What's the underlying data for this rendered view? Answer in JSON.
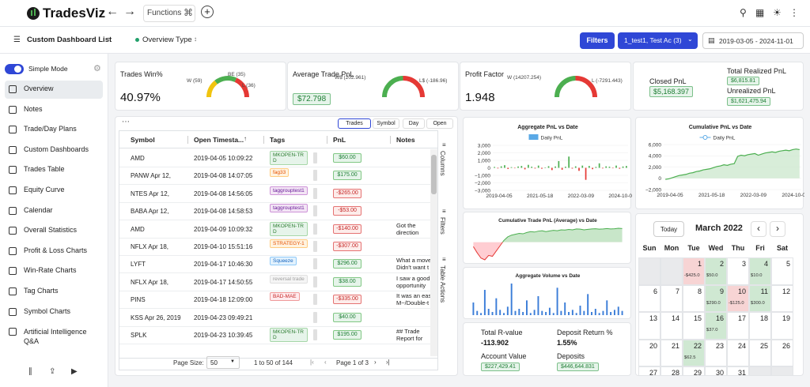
{
  "nav": {
    "brand": "TradesViz",
    "functions": "Functions"
  },
  "toolbar": {
    "dashboard_list": "Custom Dashboard List",
    "overview_type": "Overview Type",
    "filters": "Filters",
    "account": "1_test1, Test Ac (3)",
    "date_range": "2019-03-05 - 2024-11-01"
  },
  "sidebar": {
    "mode": "Simple Mode",
    "items": [
      "Overview",
      "Notes",
      "Trade/Day Plans",
      "Custom Dashboards",
      "Trades Table",
      "Equity Curve",
      "Calendar",
      "Overall Statistics",
      "Profit & Loss Charts",
      "Win-Rate Charts",
      "Tag Charts",
      "Symbol Charts",
      "Artificial Intelligence Q&A"
    ]
  },
  "stats": [
    {
      "title": "Trades Win%",
      "value": "40.97%",
      "gauge": [
        "W (59)",
        "BE (35)",
        "L (36)"
      ]
    },
    {
      "title": "Average Trade PnL",
      "value": "$72.798",
      "gauge": [
        "W$ (202.961)",
        "L$ (-186.96)"
      ]
    },
    {
      "title": "Profit Factor",
      "value": "1.948",
      "gauge": [
        "W (14207.254)",
        "L (-7291.443)"
      ]
    }
  ],
  "realized": {
    "closed_label": "Closed PnL",
    "closed_value": "$5,168.397",
    "total_label": "Total Realized PnL",
    "total_value": "$6,815.81",
    "unrealized_label": "Unrealized PnL",
    "unrealized_value": "$1,621,475.94"
  },
  "table": {
    "tabs": [
      "Trades",
      "Symbol",
      "Day",
      "Open"
    ],
    "columns": [
      "Symbol",
      "Open Timesta...",
      "Tags",
      "PnL",
      "Notes"
    ],
    "rows": [
      {
        "symbol": "AMD",
        "time": "2019-04-05 10:09:22",
        "tags": [
          {
            "text": "MKOPEN-TRD",
            "color": "green"
          }
        ],
        "pnl": "$60.00",
        "notes": null
      },
      {
        "symbol": "PANW Apr 12,",
        "time": "2019-04-08 14:07:05",
        "tags": [
          {
            "text": "fag33",
            "color": "orange"
          }
        ],
        "pnl": "$175.00",
        "notes": null
      },
      {
        "symbol": "NTES Apr 12,",
        "time": "2019-04-08 14:56:05",
        "tags": [
          {
            "text": "taggrouptest1",
            "color": "purple"
          }
        ],
        "pnl": "-$265.00",
        "notes": null
      },
      {
        "symbol": "BABA Apr 12,",
        "time": "2019-04-08 14:58:53",
        "tags": [
          {
            "text": "taggrouptest1",
            "color": "purple"
          }
        ],
        "pnl": "-$53.00",
        "notes": null
      },
      {
        "symbol": "AMD",
        "time": "2019-04-09 10:09:32",
        "tags": [
          {
            "text": "MKOPEN-TRD",
            "color": "green"
          }
        ],
        "pnl": "-$140.00",
        "notes": "Got the direction"
      },
      {
        "symbol": "NFLX Apr 18,",
        "time": "2019-04-10 15:51:16",
        "tags": [
          {
            "text": "STRATEGY-1",
            "color": "orange"
          }
        ],
        "pnl": "-$307.00",
        "notes": null
      },
      {
        "symbol": "LYFT",
        "time": "2019-04-17 10:46:30",
        "tags": [
          {
            "text": "Squeeze",
            "color": "blue"
          }
        ],
        "pnl": "$296.00",
        "notes": "What a move Didn't want t"
      },
      {
        "symbol": "NFLX Apr 18,",
        "time": "2019-04-17 14:50:55",
        "tags": [
          {
            "text": "reversal trade",
            "color": "grey"
          }
        ],
        "pnl": "$38.00",
        "notes": "I saw a good opportunity"
      },
      {
        "symbol": "PINS",
        "time": "2019-04-18 12:09:00",
        "tags": [
          {
            "text": "BAD-MAE",
            "color": "red"
          }
        ],
        "pnl": "-$335.00",
        "notes": "It was an eas M~/Double-t"
      },
      {
        "symbol": "KSS Apr 26, 2019",
        "time": "2019-04-23 09:49:21",
        "tags": [],
        "pnl": "$40.00",
        "notes": null
      },
      {
        "symbol": "SPLK",
        "time": "2019-04-23 10:39:45",
        "tags": [
          {
            "text": "MKOPEN-TRD",
            "color": "green"
          }
        ],
        "pnl": "$195.00",
        "notes": "## Trade Report for"
      }
    ],
    "side": [
      "Columns",
      "Filters",
      "Table Actions"
    ],
    "footer": {
      "page_size_label": "Page Size:",
      "page_size": "50",
      "range": "1 to 50 of 144",
      "page": "Page 1 of 3"
    }
  },
  "charts": {
    "aggregate_pnl": {
      "title": "Aggregate PnL vs Date",
      "legend": "Daily PnL",
      "color": "#4caf50",
      "neg_color": "#e53935",
      "ylim": [
        -3000,
        3000
      ],
      "yticks": [
        {
          "value": 3000,
          "label": "3,000"
        },
        {
          "value": 2000,
          "label": "2,000"
        },
        {
          "value": 1000,
          "label": "1,000"
        },
        0,
        {
          "value": -1000,
          "label": "−1,000"
        },
        {
          "value": -2000,
          "label": "−2,000"
        },
        {
          "value": -3000,
          "label": "−3,000"
        }
      ],
      "xticks": [
        "2019-04-05",
        "2021-05-18",
        "2022-03-09",
        "2024-10-01"
      ],
      "values": [
        120,
        -80,
        200,
        350,
        -150,
        90,
        -60,
        180,
        250,
        -200,
        400,
        150,
        -90,
        300,
        -120,
        60,
        220,
        -300,
        180,
        900,
        -250,
        150,
        1500,
        -100,
        200,
        -400,
        300,
        -1600,
        250,
        -180,
        120,
        600,
        -80,
        200,
        150,
        -60,
        300,
        -120,
        180,
        250
      ]
    },
    "cumulative_pnl": {
      "title": "Cumulative PnL vs Date",
      "legend": "Daily PnL",
      "color": "#4caf50",
      "ylim": [
        -2000,
        6000
      ],
      "yticks": [
        {
          "value": 6000,
          "label": "6,000"
        },
        {
          "value": 4000,
          "label": "4,000"
        },
        {
          "value": 2000,
          "label": "2,000"
        },
        0,
        {
          "value": -2000,
          "label": "−2,000"
        }
      ],
      "xticks": [
        "2019-04-05",
        "2021-05-18",
        "2022-03-09",
        "2024-10-01"
      ],
      "values": [
        -200,
        -100,
        100,
        300,
        500,
        600,
        700,
        900,
        1000,
        1200,
        1300,
        1500,
        1600,
        1700,
        1900,
        2100,
        2200,
        2400,
        2300,
        2500,
        2600,
        3900,
        4100,
        4000,
        4200,
        4300,
        4400,
        4100,
        4300,
        4500,
        4600,
        4700,
        4600,
        4800,
        4900,
        5000,
        4900,
        5100,
        5200,
        5100
      ]
    },
    "cumulative_avg": {
      "title": "Cumulative Trade PnL (Average) vs Date",
      "color": "#4caf50",
      "neg_color": "#e53935",
      "values": [
        -50,
        -120,
        -180,
        -200,
        -150,
        -160,
        -100,
        -40,
        20,
        60,
        80,
        90,
        100,
        95,
        110,
        120,
        115,
        125,
        130,
        120,
        128,
        135,
        130,
        140,
        138,
        145,
        140,
        150,
        148,
        140,
        146,
        150,
        152,
        148,
        150,
        155,
        150,
        152,
        158,
        155
      ]
    },
    "volume": {
      "title": "Aggregate Volume vs Date",
      "color": "#3b7dd8",
      "values": [
        60,
        20,
        10,
        120,
        30,
        15,
        80,
        25,
        10,
        40,
        150,
        20,
        30,
        15,
        70,
        10,
        25,
        90,
        20,
        15,
        35,
        10,
        130,
        20,
        60,
        15,
        25,
        10,
        45,
        20,
        100,
        15,
        30,
        10,
        20,
        70,
        15,
        25,
        40,
        20
      ]
    }
  },
  "summary": [
    {
      "label": "Total R-value",
      "value": "-113.902"
    },
    {
      "label": "Deposit Return %",
      "value": "1.55%"
    },
    {
      "label": "Account Value",
      "value": "$227,429.41"
    },
    {
      "label": "Deposits",
      "value": "$446,644.831"
    }
  ],
  "calendar": {
    "today": "Today",
    "month": "March 2022",
    "weekdays": [
      "Sun",
      "Mon",
      "Tue",
      "Wed",
      "Thu",
      "Fri",
      "Sat"
    ],
    "weeks": [
      [
        null,
        null,
        {
          "day": 1,
          "pnl": "-$425.0"
        },
        {
          "day": 2,
          "pnl": "$50.0"
        },
        {
          "day": 3,
          "pnl": null
        },
        {
          "day": 4,
          "pnl": "$10.0"
        },
        {
          "day": 5,
          "pnl": null
        }
      ],
      [
        {
          "day": 6,
          "pnl": null
        },
        {
          "day": 7,
          "pnl": null
        },
        {
          "day": 8,
          "pnl": null
        },
        {
          "day": 9,
          "pnl": "$290.0"
        },
        {
          "day": 10,
          "pnl": "-$125.0"
        },
        {
          "day": 11,
          "pnl": "$300.0"
        },
        {
          "day": 12,
          "pnl": null
        }
      ],
      [
        {
          "day": 13,
          "pnl": null
        },
        {
          "day": 14,
          "pnl": null
        },
        {
          "day": 15,
          "pnl": null
        },
        {
          "day": 16,
          "pnl": "$37.0"
        },
        {
          "day": 17,
          "pnl": null
        },
        {
          "day": 18,
          "pnl": null
        },
        {
          "day": 19,
          "pnl": null
        }
      ],
      [
        {
          "day": 20,
          "pnl": null
        },
        {
          "day": 21,
          "pnl": null
        },
        {
          "day": 22,
          "pnl": "$62.5"
        },
        {
          "day": 23,
          "pnl": null
        },
        {
          "day": 24,
          "pnl": null
        },
        {
          "day": 25,
          "pnl": null
        },
        {
          "day": 26,
          "pnl": null
        }
      ],
      [
        {
          "day": 27,
          "pnl": null
        },
        {
          "day": 28,
          "pnl": null
        },
        {
          "day": 29,
          "pnl": null
        },
        {
          "day": 30,
          "pnl": null
        },
        {
          "day": 31,
          "pnl": null
        },
        null,
        null
      ]
    ]
  }
}
